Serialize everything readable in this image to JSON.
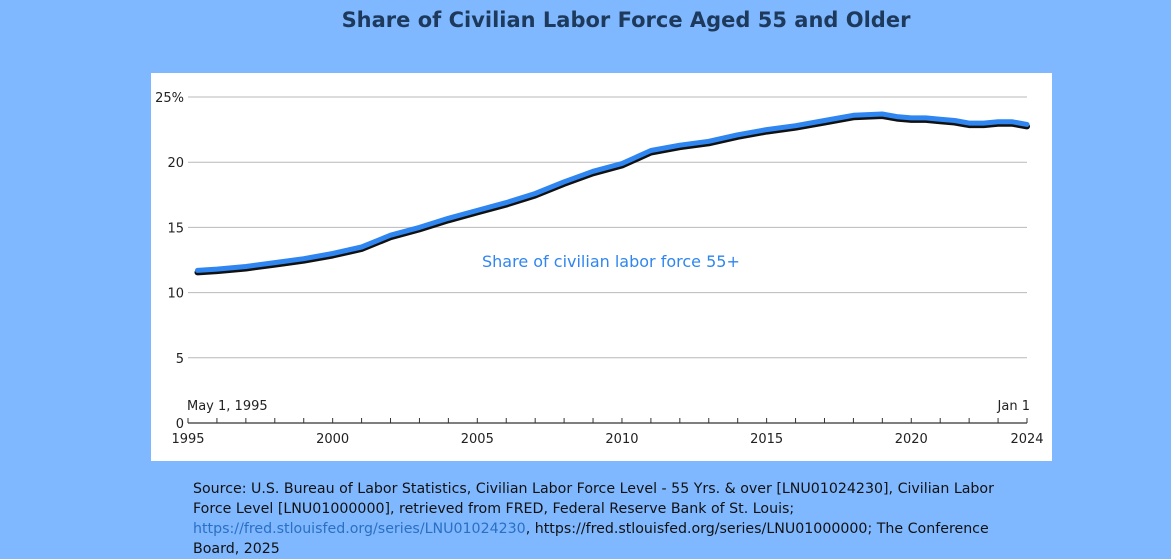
{
  "title": "Share of Civilian Labor Force Aged 55 and Older",
  "colors": {
    "background": "#80b8ff",
    "line": "#2f86f0",
    "shadow": "#111111",
    "title": "#1d3a5c",
    "link": "#2a6fc2"
  },
  "source": {
    "prefix": "Source: U.S. Bureau of Labor Statistics, Civilian Labor Force Level - 55 Yrs. & over [LNU01024230], Civilian Labor Force Level [LNU01000000], retrieved from FRED, Federal Reserve Bank of St. Louis;",
    "link1": "https://fred.stlouisfed.org/series/LNU01024230",
    "suffix": ", https://fred.stlouisfed.org/series/LNU01000000; The Conference Board, 2025"
  },
  "chart_data": {
    "type": "line",
    "title": "Share of Civilian Labor Force Aged 55 and Older",
    "xlabel": "",
    "ylabel": "",
    "xlim": [
      1995,
      2024
    ],
    "ylim": [
      0,
      25
    ],
    "x_ticks": [
      1995,
      2000,
      2005,
      2010,
      2015,
      2020,
      2024
    ],
    "y_ticks": [
      0,
      5,
      10,
      15,
      20,
      25
    ],
    "y_tick_labels": [
      "0",
      "5",
      "10",
      "15",
      "20",
      "25%"
    ],
    "grid": true,
    "annotations": {
      "start": "May 1, 1995",
      "end": "Jan 1",
      "series_label": "Share of civilian labor force 55+"
    },
    "series": [
      {
        "name": "Share of civilian labor force 55+",
        "x": [
          1995.33,
          1996,
          1997,
          1998,
          1999,
          2000,
          2001,
          2002,
          2003,
          2004,
          2005,
          2006,
          2007,
          2008,
          2009,
          2010,
          2011,
          2012,
          2013,
          2014,
          2015,
          2016,
          2017,
          2018,
          2019,
          2019.5,
          2020,
          2020.5,
          2021,
          2021.5,
          2022,
          2022.5,
          2023,
          2023.5,
          2024
        ],
        "y": [
          11.7,
          11.8,
          12.0,
          12.3,
          12.6,
          13.0,
          13.5,
          14.4,
          15.0,
          15.7,
          16.3,
          16.9,
          17.6,
          18.5,
          19.3,
          19.9,
          20.9,
          21.3,
          21.6,
          22.1,
          22.5,
          22.8,
          23.2,
          23.6,
          23.7,
          23.5,
          23.4,
          23.4,
          23.3,
          23.2,
          23.0,
          23.0,
          23.1,
          23.1,
          22.9
        ]
      }
    ]
  }
}
